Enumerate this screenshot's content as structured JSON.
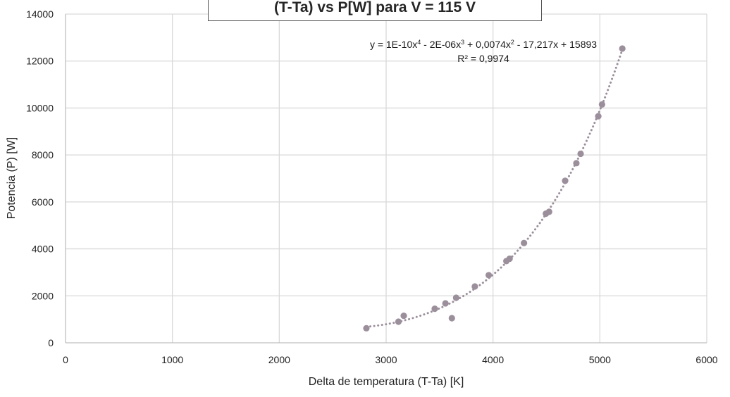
{
  "chart_data": {
    "type": "scatter",
    "title": "(T-Ta) vs P[W] para V = 115 V",
    "xlabel": "Delta de temperatura (T-Ta) [K]",
    "ylabel": "Potencia (P) [W]",
    "xlim": [
      0,
      6000
    ],
    "ylim": [
      0,
      14000
    ],
    "xticks": [
      0,
      1000,
      2000,
      3000,
      4000,
      5000,
      6000
    ],
    "yticks": [
      0,
      2000,
      4000,
      6000,
      8000,
      10000,
      12000,
      14000
    ],
    "grid": true,
    "series": [
      {
        "points": [
          [
            2815,
            620
          ],
          [
            3115,
            900
          ],
          [
            3165,
            1150
          ],
          [
            3455,
            1450
          ],
          [
            3555,
            1680
          ],
          [
            3615,
            1050
          ],
          [
            3655,
            1920
          ],
          [
            3830,
            2400
          ],
          [
            3960,
            2880
          ],
          [
            4125,
            3480
          ],
          [
            4155,
            3580
          ],
          [
            4290,
            4250
          ],
          [
            4495,
            5500
          ],
          [
            4525,
            5580
          ],
          [
            4675,
            6900
          ],
          [
            4780,
            7650
          ],
          [
            4820,
            8050
          ],
          [
            4985,
            9650
          ],
          [
            5020,
            10150
          ],
          [
            5210,
            12530
          ]
        ]
      }
    ],
    "trendline": {
      "type": "polynomial",
      "order": 4,
      "style": "dotted",
      "x_range": [
        2815,
        5210
      ],
      "equation_parts": [
        "y = 1E-10x",
        "4",
        " - 2E-06x",
        "3",
        " + 0,0074x",
        "2",
        " - 17,217x + 15893"
      ],
      "r_squared_label": "R² = 0,9974"
    },
    "colors": {
      "marker": "#9b8f9b",
      "trendline": "#9b8f9b",
      "grid": "#d9d9d9",
      "axis": "#bfbfbf"
    }
  }
}
